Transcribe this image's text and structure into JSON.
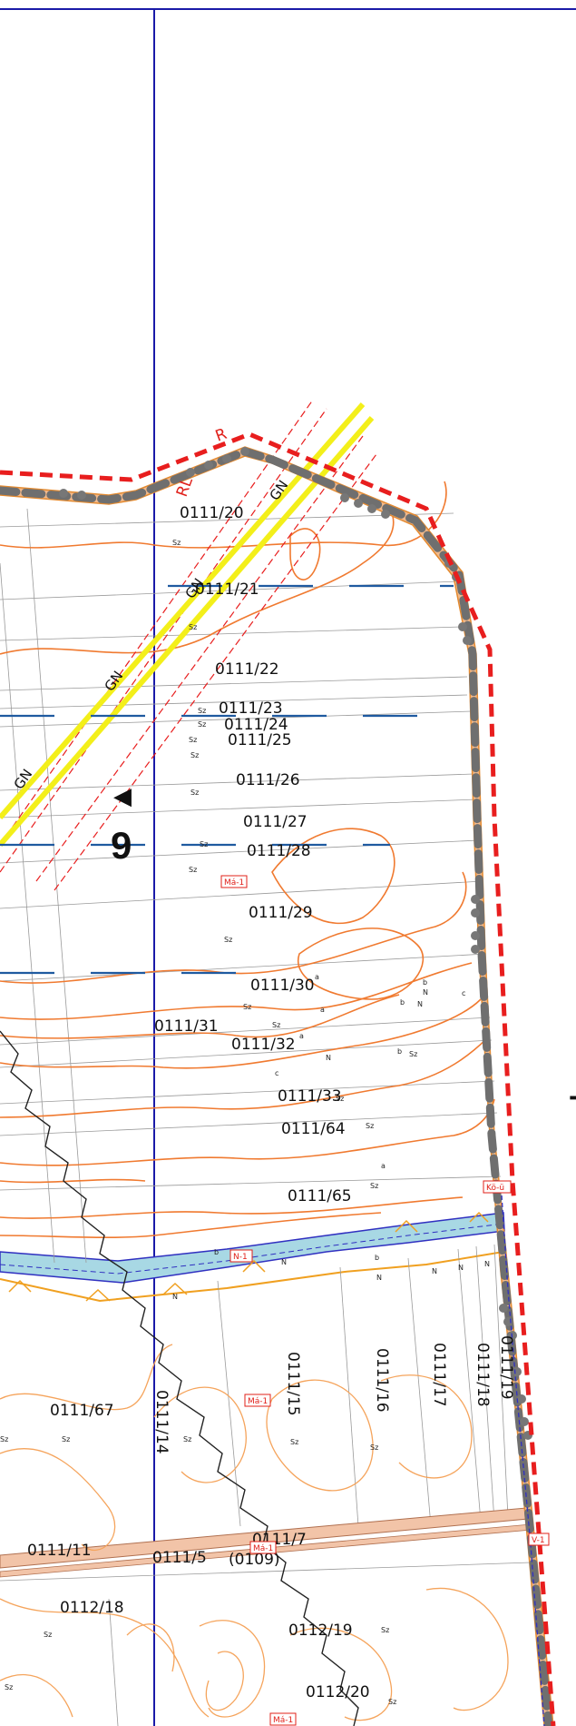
{
  "map": {
    "section_number": "9",
    "edge_fragment": "T",
    "direction_marker": "◀",
    "parcels": [
      "0111/20",
      "0111/21",
      "0111/22",
      "0111/23",
      "0111/24",
      "0111/25",
      "0111/26",
      "0111/27",
      "0111/28",
      "0111/29",
      "0111/30",
      "0111/31",
      "0111/32",
      "0111/33",
      "0111/64",
      "0111/65",
      "0111/67",
      "0111/14",
      "0111/15",
      "0111/16",
      "0111/17",
      "0111/18",
      "0111/19",
      "0111/11",
      "0111/5",
      "0111/7",
      "(0109)",
      "0112/18",
      "0112/19",
      "0112/20"
    ],
    "zones": [
      "Má-1",
      "Kö-ü",
      "N-1",
      "Má-1",
      "Má-1",
      "V-1",
      "Má-1"
    ],
    "route_labels": [
      "GN",
      "GN",
      "GN",
      "GN"
    ],
    "boundary_labels": [
      "R",
      "RL"
    ],
    "land_use_codes": [
      "Sz",
      "a",
      "b",
      "c",
      "N"
    ],
    "colors": {
      "plan_boundary": "#e81e1e",
      "contour": "#f07a30",
      "contour_light": "#f5a45c",
      "water": "#a8d8e4",
      "road_fill": "#f2b98a",
      "pipeline": "#f3ef1a",
      "sheet_grid": "#1a1aa8",
      "dashed_line": "#1f5aa0",
      "parcel_line": "#8a8a8a",
      "node": "#777777"
    }
  }
}
